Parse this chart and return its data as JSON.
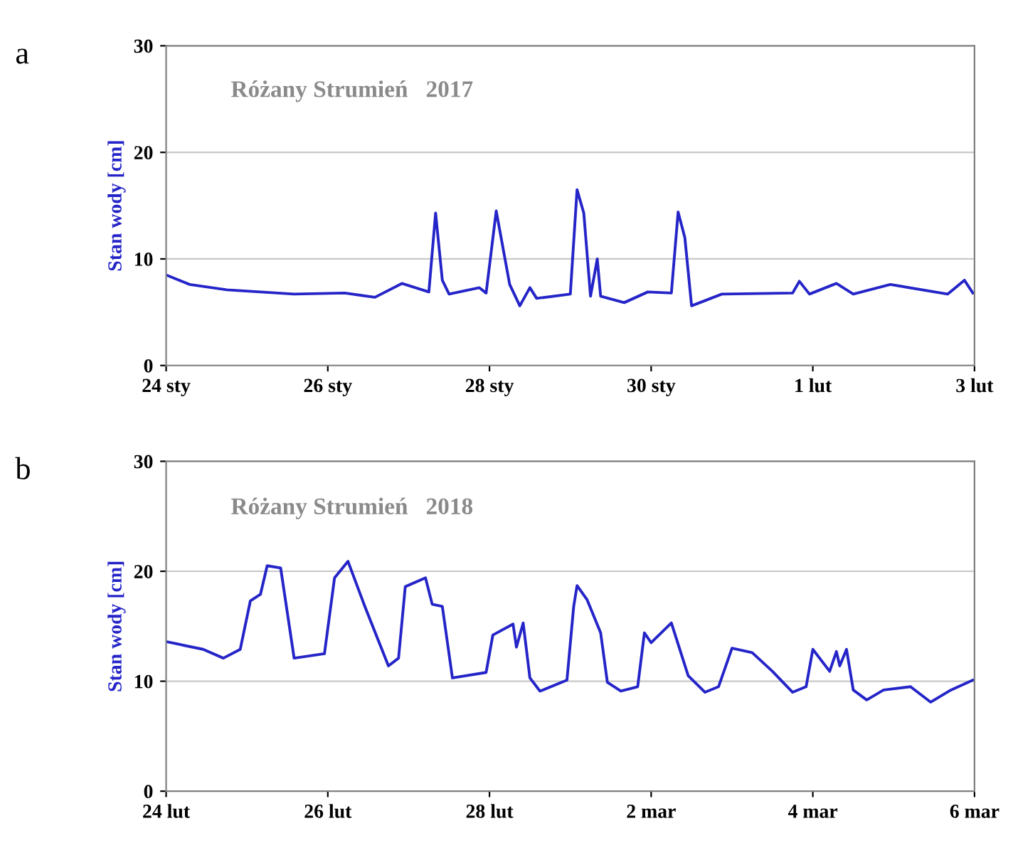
{
  "chart_data": [
    {
      "type": "line",
      "title": "Różany Strumień   2017",
      "ylabel": "Stan wody [cm]",
      "annotations": [
        "a"
      ],
      "color": "#2424c8",
      "grid": "y",
      "legend": false,
      "x": [
        "2017-01-24T00:00",
        "2017-01-24T07:00",
        "2017-01-24T18:00",
        "2017-01-25T14:00",
        "2017-01-26T05:00",
        "2017-01-26T14:00",
        "2017-01-26T22:00",
        "2017-01-27T06:00",
        "2017-01-27T08:00",
        "2017-01-27T10:00",
        "2017-01-27T12:00",
        "2017-01-27T21:00",
        "2017-01-27T23:00",
        "2017-01-28T02:00",
        "2017-01-28T06:00",
        "2017-01-28T09:00",
        "2017-01-28T12:00",
        "2017-01-28T14:00",
        "2017-01-29T00:00",
        "2017-01-29T02:00",
        "2017-01-29T04:00",
        "2017-01-29T06:00",
        "2017-01-29T08:00",
        "2017-01-29T09:00",
        "2017-01-29T16:00",
        "2017-01-29T23:00",
        "2017-01-30T06:00",
        "2017-01-30T08:00",
        "2017-01-30T10:00",
        "2017-01-30T12:00",
        "2017-01-30T21:00",
        "2017-01-31T18:00",
        "2017-01-31T20:00",
        "2017-01-31T23:00",
        "2017-02-01T07:00",
        "2017-02-01T12:00",
        "2017-02-01T23:00",
        "2017-02-02T16:00",
        "2017-02-02T21:00",
        "2017-02-02T23:30"
      ],
      "values": [
        8.5,
        7.6,
        7.1,
        6.7,
        6.8,
        6.4,
        7.7,
        6.9,
        14.3,
        8.0,
        6.7,
        7.3,
        6.8,
        14.5,
        7.6,
        5.6,
        7.3,
        6.3,
        6.7,
        16.5,
        14.3,
        6.5,
        10.0,
        6.5,
        5.9,
        6.9,
        6.8,
        14.4,
        12.0,
        5.6,
        6.7,
        6.8,
        7.9,
        6.7,
        7.7,
        6.7,
        7.6,
        6.7,
        8.0,
        6.8
      ],
      "xlim": [
        "2017-01-24T00:00",
        "2017-02-03T00:00"
      ],
      "xticks": [
        {
          "value": "2017-01-24",
          "label": "24 sty"
        },
        {
          "value": "2017-01-26",
          "label": "26 sty"
        },
        {
          "value": "2017-01-28",
          "label": "28 sty"
        },
        {
          "value": "2017-01-30",
          "label": "30 sty"
        },
        {
          "value": "2017-02-01",
          "label": "1 lut"
        },
        {
          "value": "2017-02-03",
          "label": "3 lut"
        }
      ],
      "ylim": [
        0,
        30
      ],
      "yticks": [
        0,
        10,
        20,
        30
      ]
    },
    {
      "type": "line",
      "title": "Różany Strumień   2018",
      "ylabel": "Stan wody [cm]",
      "annotations": [
        "b"
      ],
      "color": "#2424c8",
      "grid": "y",
      "legend": false,
      "x": [
        "2018-02-24T00:00",
        "2018-02-24T11:00",
        "2018-02-24T17:00",
        "2018-02-24T22:00",
        "2018-02-25T01:00",
        "2018-02-25T04:00",
        "2018-02-25T06:00",
        "2018-02-25T10:00",
        "2018-02-25T14:00",
        "2018-02-25T23:00",
        "2018-02-26T02:00",
        "2018-02-26T06:00",
        "2018-02-26T11:00",
        "2018-02-26T18:00",
        "2018-02-26T21:00",
        "2018-02-26T23:00",
        "2018-02-27T05:00",
        "2018-02-27T07:00",
        "2018-02-27T10:00",
        "2018-02-27T13:00",
        "2018-02-27T23:00",
        "2018-02-28T01:00",
        "2018-02-28T07:00",
        "2018-02-28T08:00",
        "2018-02-28T10:00",
        "2018-02-28T12:00",
        "2018-02-28T15:00",
        "2018-02-28T23:00",
        "2018-03-01T01:00",
        "2018-03-01T02:00",
        "2018-03-01T05:00",
        "2018-03-01T09:00",
        "2018-03-01T11:00",
        "2018-03-01T15:00",
        "2018-03-01T20:00",
        "2018-03-01T22:00",
        "2018-03-02T00:00",
        "2018-03-02T06:00",
        "2018-03-02T11:00",
        "2018-03-02T16:00",
        "2018-03-02T20:00",
        "2018-03-03T00:00",
        "2018-03-03T06:00",
        "2018-03-03T12:00",
        "2018-03-03T18:00",
        "2018-03-03T22:00",
        "2018-03-04T00:00",
        "2018-03-04T05:00",
        "2018-03-04T07:00",
        "2018-03-04T08:00",
        "2018-03-04T10:00",
        "2018-03-04T12:00",
        "2018-03-04T16:00",
        "2018-03-04T21:00",
        "2018-03-05T05:00",
        "2018-03-05T11:00",
        "2018-03-05T17:00",
        "2018-03-05T23:30"
      ],
      "values": [
        13.6,
        12.9,
        12.1,
        12.9,
        17.3,
        17.9,
        20.5,
        20.3,
        12.1,
        12.5,
        19.4,
        20.9,
        16.8,
        11.4,
        12.1,
        18.6,
        19.4,
        17.0,
        16.8,
        10.3,
        10.8,
        14.2,
        15.2,
        13.1,
        15.3,
        10.3,
        9.1,
        10.1,
        16.8,
        18.7,
        17.4,
        14.4,
        9.9,
        9.1,
        9.5,
        14.4,
        13.5,
        15.3,
        10.5,
        9.0,
        9.5,
        13.0,
        12.6,
        10.9,
        9.0,
        9.5,
        12.9,
        10.9,
        12.7,
        11.4,
        12.9,
        9.2,
        8.3,
        9.2,
        9.5,
        8.1,
        9.2,
        10.1
      ],
      "xlim": [
        "2018-02-24T00:00",
        "2018-03-06T00:00"
      ],
      "xticks": [
        {
          "value": "2018-02-24",
          "label": "24 lut"
        },
        {
          "value": "2018-02-26",
          "label": "26 lut"
        },
        {
          "value": "2018-02-28",
          "label": "28 lut"
        },
        {
          "value": "2018-03-02",
          "label": "2 mar"
        },
        {
          "value": "2018-03-04",
          "label": "4 mar"
        },
        {
          "value": "2018-03-06",
          "label": "6 mar"
        }
      ],
      "ylim": [
        0,
        30
      ],
      "yticks": [
        0,
        10,
        20,
        30
      ]
    }
  ]
}
